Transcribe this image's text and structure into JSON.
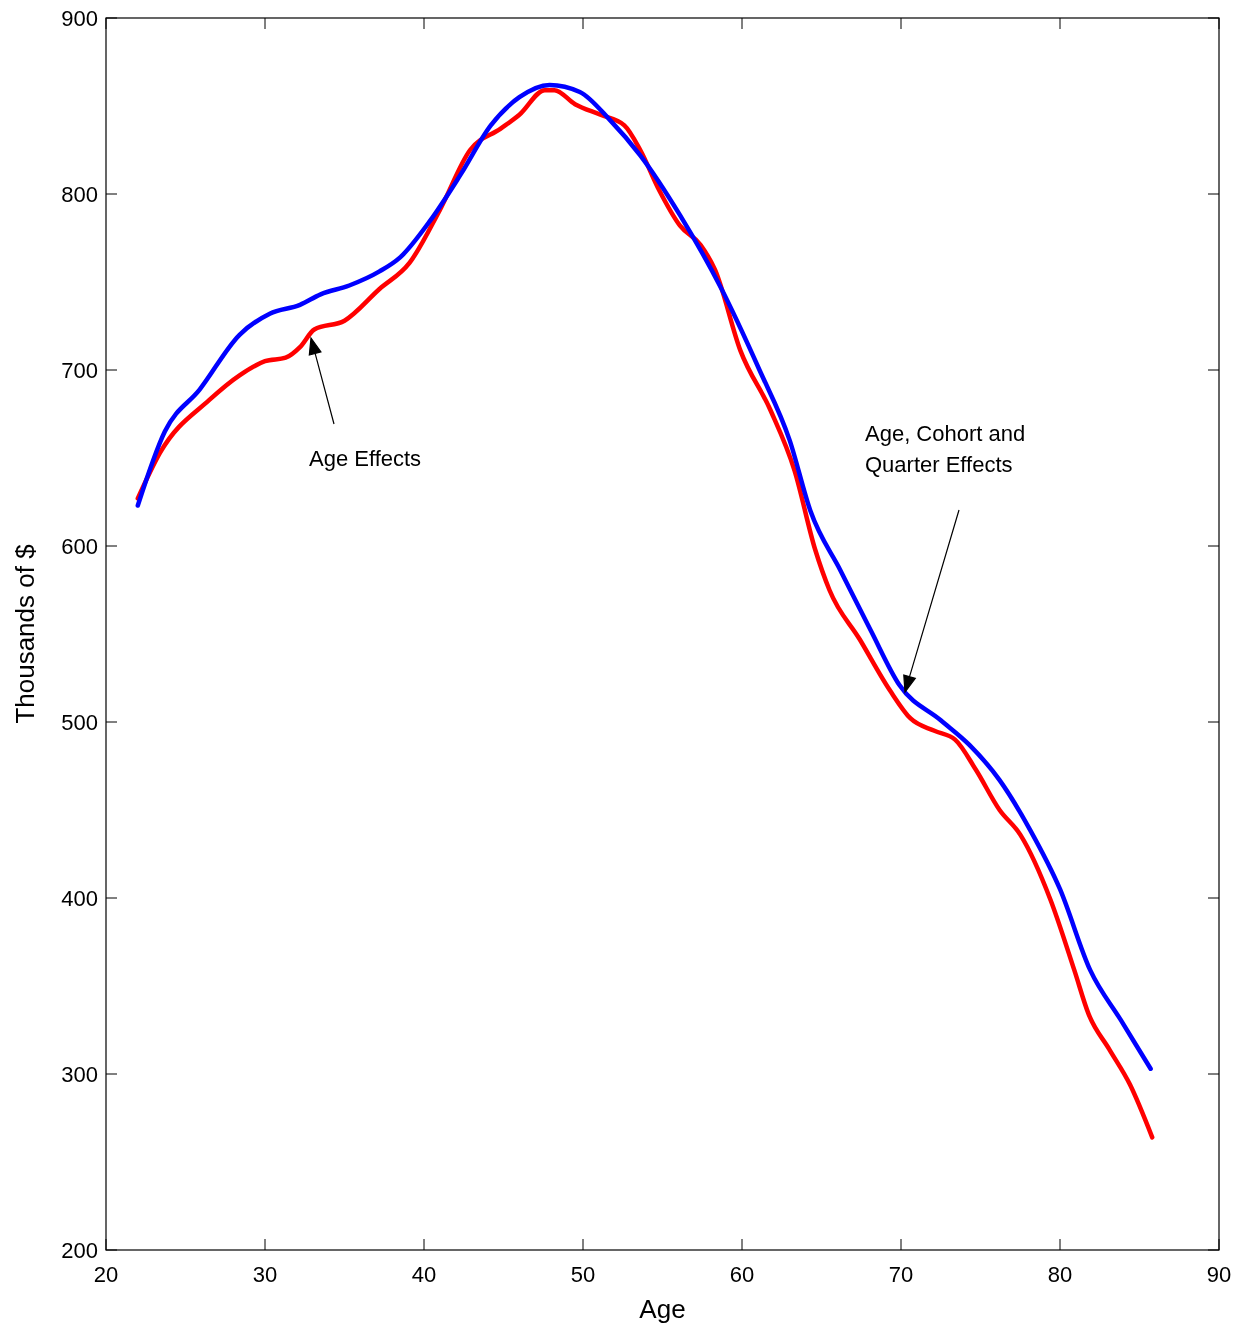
{
  "chart_data": {
    "type": "line",
    "xlabel": "Age",
    "ylabel": "Thousands of $",
    "xlim": [
      20,
      90
    ],
    "xticks": [
      20,
      30,
      40,
      50,
      60,
      70,
      80,
      90
    ],
    "ylim": [
      200,
      900
    ],
    "yticks": [
      200,
      300,
      400,
      500,
      600,
      700,
      800,
      900
    ],
    "grid": false,
    "annotations": [
      "Age Effects",
      "Age, Cohort and\nQuarter Effects"
    ],
    "series": [
      {
        "color": "#ff0000",
        "x": [
          22,
          23.4,
          26.5,
          28.4,
          30,
          31.3,
          32.2,
          33.1,
          35,
          37.2,
          39.1,
          41,
          42.9,
          44.8,
          46,
          47.6,
          48.2,
          49.5,
          51.1,
          52.6,
          53.6,
          54.8,
          56.1,
          57.4,
          58.3,
          59.9,
          61.8,
          63.3,
          64.6,
          65.5,
          67.4,
          69.3,
          70.6,
          72.1,
          73.4,
          74.7,
          76.2,
          77.5,
          79.4,
          80.9,
          81.8,
          83.1,
          84.4,
          85.8
        ],
        "values": [
          627,
          653,
          683,
          697,
          705,
          707,
          713,
          723,
          728,
          746,
          761,
          791,
          825,
          837,
          845,
          859,
          859,
          851,
          845,
          839,
          825,
          802,
          782,
          771,
          757,
          711,
          677,
          643,
          598,
          575,
          547,
          518,
          502,
          495,
          490,
          473,
          450,
          436,
          399,
          359,
          334,
          314,
          294,
          264
        ]
      },
      {
        "color": "#0000ff",
        "x": [
          22,
          23.7,
          25.9,
          28.4,
          30.3,
          32.2,
          33.5,
          35.3,
          37.2,
          38.5,
          40.4,
          42.3,
          44.2,
          46,
          47.9,
          49.8,
          51.7,
          53.6,
          56.1,
          58.6,
          61.1,
          63,
          64.3,
          66.2,
          68.1,
          69.9,
          72.5,
          74.3,
          76.2,
          78.1,
          80,
          81.9,
          83.8,
          85.7
        ],
        "values": [
          623,
          665,
          689,
          720,
          732,
          737,
          743,
          748,
          756,
          764,
          785,
          811,
          839,
          855,
          862,
          858,
          842,
          822,
          788,
          748,
          700,
          660,
          620,
          586,
          552,
          521,
          501,
          487,
          467,
          439,
          405,
          359,
          331,
          303
        ]
      }
    ]
  }
}
